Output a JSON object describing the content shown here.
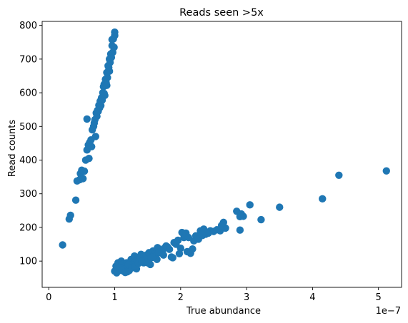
{
  "chart_data": {
    "type": "scatter",
    "title": "Reads seen >5x",
    "xlabel": "True abundance",
    "ylabel": "Read counts",
    "x_offset_label": "1e−7",
    "x_scale": 1e-07,
    "xlim": [
      -1e-08,
      5.35e-07
    ],
    "ylim": [
      22,
      812
    ],
    "x_ticks": [
      0,
      1e-07,
      2e-07,
      3e-07,
      4e-07,
      5e-07
    ],
    "x_tick_labels": [
      "0",
      "1",
      "2",
      "3",
      "4",
      "5"
    ],
    "y_ticks": [
      100,
      200,
      300,
      400,
      500,
      600,
      700,
      800
    ],
    "y_tick_labels": [
      "100",
      "200",
      "300",
      "400",
      "500",
      "600",
      "700",
      "800"
    ],
    "grid": false,
    "marker_color": "#1f77b4",
    "series": [
      {
        "x": [
          2.1e-08,
          3.1e-08,
          3.3e-08,
          4.1e-08,
          4.3e-08,
          4.7e-08,
          4.8e-08,
          5e-08,
          5.2e-08,
          5.4e-08,
          5.6e-08,
          5.8e-08,
          6e-08,
          6.2e-08,
          6.4e-08,
          6.6e-08,
          6.8e-08,
          7e-08,
          7.2e-08,
          7.4e-08,
          7.6e-08,
          7.8e-08,
          8e-08,
          8.2e-08,
          8.4e-08,
          8.6e-08,
          8.8e-08,
          9e-08,
          9.2e-08,
          9.4e-08,
          9.6e-08,
          9.8e-08,
          1e-07,
          5.8e-08,
          6.1e-08,
          6.5e-08,
          6.9e-08,
          7.3e-08,
          7.7e-08,
          8.1e-08,
          8.3e-08,
          8.5e-08,
          8.7e-08,
          8.9e-08,
          9.1e-08,
          9.3e-08,
          9.5e-08,
          9.7e-08,
          9.9e-08,
          1e-07,
          7.1e-08,
          7.5e-08,
          7.9e-08,
          8.4e-08,
          8.8e-08,
          9.2e-08,
          9.6e-08,
          1e-07,
          1.02e-07,
          1.05e-07,
          1.08e-07,
          1.1e-07,
          1.12e-07,
          1.15e-07,
          1.18e-07,
          1.2e-07,
          1.22e-07,
          1.25e-07,
          1.28e-07,
          1.3e-07,
          1.32e-07,
          1.35e-07,
          1.38e-07,
          1.4e-07,
          1.42e-07,
          1.45e-07,
          1.48e-07,
          1.5e-07,
          1.52e-07,
          1.55e-07,
          1.58e-07,
          1.6e-07,
          1.62e-07,
          1.65e-07,
          1.68e-07,
          1.7e-07,
          1.72e-07,
          1.75e-07,
          1.78e-07,
          1.8e-07,
          1.83e-07,
          1.86e-07,
          1.9e-07,
          1.93e-07,
          1.96e-07,
          2e-07,
          2.02e-07,
          2.05e-07,
          2.08e-07,
          2.12e-07,
          2.15e-07,
          2.2e-07,
          2.23e-07,
          2.27e-07,
          2.3e-07,
          2.35e-07,
          2.38e-07,
          2.42e-07,
          2.45e-07,
          2.5e-07,
          2.55e-07,
          2.6e-07,
          2.65e-07,
          2.68e-07,
          2.85e-07,
          2.9e-07,
          2.92e-07,
          2.95e-07,
          3.05e-07,
          3.22e-07,
          3.5e-07,
          4.15e-07,
          4.4e-07,
          5.12e-07,
          1.03e-07,
          1.07e-07,
          1.14e-07,
          1.19e-07,
          1.24e-07,
          1.33e-07,
          1.44e-07,
          1.54e-07,
          1.64e-07,
          1.74e-07,
          1.88e-07,
          1.98e-07,
          2.1e-07,
          2.4e-07,
          2.9e-07,
          1.27e-07,
          1.37e-07,
          1.47e-07,
          1.57e-07,
          1.67e-07,
          2.18e-07,
          2.33e-07,
          2.62e-07,
          1.11e-07,
          1.16e-07,
          1.21e-07,
          1.26e-07,
          1.31e-07,
          1.36e-07,
          1.41e-07
        ],
        "y": [
          148,
          225,
          236,
          281,
          338,
          342,
          360,
          370,
          345,
          367,
          400,
          430,
          445,
          452,
          460,
          490,
          500,
          520,
          540,
          548,
          563,
          575,
          585,
          600,
          625,
          640,
          660,
          680,
          700,
          715,
          740,
          760,
          780,
          522,
          405,
          440,
          510,
          530,
          555,
          578,
          618,
          592,
          630,
          645,
          675,
          690,
          705,
          720,
          735,
          770,
          470,
          545,
          562,
          598,
          622,
          664,
          758,
          70,
          85,
          95,
          78,
          100,
          90,
          82,
          95,
          88,
          72,
          105,
          92,
          115,
          100,
          98,
          108,
          120,
          112,
          103,
          118,
          95,
          125,
          110,
          130,
          120,
          115,
          140,
          125,
          132,
          128,
          138,
          145,
          142,
          135,
          112,
          155,
          150,
          162,
          138,
          185,
          170,
          183,
          170,
          123,
          160,
          175,
          165,
          190,
          195,
          180,
          183,
          190,
          188,
          193,
          190,
          215,
          198,
          248,
          192,
          240,
          233,
          267,
          223,
          260,
          285,
          355,
          368,
          65,
          80,
          75,
          68,
          85,
          77,
          95,
          90,
          105,
          118,
          110,
          122,
          128,
          183,
          232,
          88,
          102,
          97,
          111,
          126,
          136,
          176,
          206,
          72,
          66,
          90,
          80,
          84,
          93,
          99
        ]
      }
    ]
  }
}
